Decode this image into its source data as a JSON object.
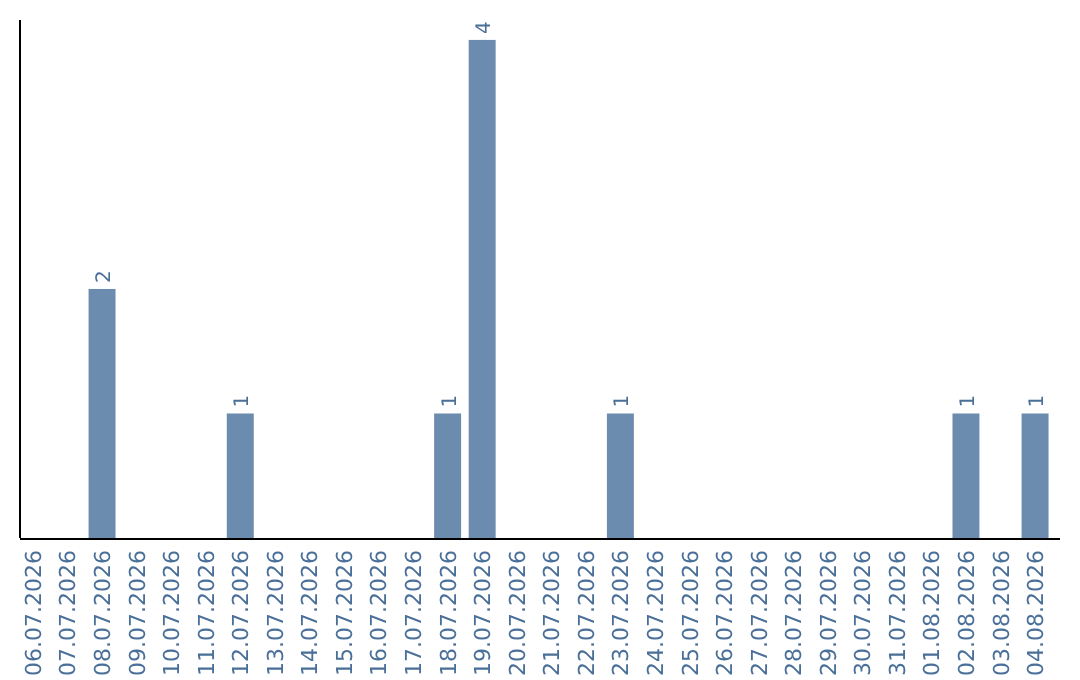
{
  "chart_data": {
    "type": "bar",
    "categories": [
      "06.07.2026",
      "07.07.2026",
      "08.07.2026",
      "09.07.2026",
      "10.07.2026",
      "11.07.2026",
      "12.07.2026",
      "13.07.2026",
      "14.07.2026",
      "15.07.2026",
      "16.07.2026",
      "17.07.2026",
      "18.07.2026",
      "19.07.2026",
      "20.07.2026",
      "21.07.2026",
      "22.07.2026",
      "23.07.2026",
      "24.07.2026",
      "25.07.2026",
      "26.07.2026",
      "27.07.2026",
      "28.07.2026",
      "29.07.2026",
      "30.07.2026",
      "31.07.2026",
      "01.08.2026",
      "02.08.2026",
      "03.08.2026",
      "04.08.2026"
    ],
    "values": [
      0,
      0,
      2,
      0,
      0,
      0,
      1,
      0,
      0,
      0,
      0,
      0,
      1,
      4,
      0,
      0,
      0,
      1,
      0,
      0,
      0,
      0,
      0,
      0,
      0,
      0,
      0,
      1,
      0,
      1
    ],
    "value_labels": [
      null,
      null,
      "2",
      null,
      null,
      null,
      "1",
      null,
      null,
      null,
      null,
      null,
      "1",
      "4",
      null,
      null,
      null,
      "1",
      null,
      null,
      null,
      null,
      null,
      null,
      null,
      null,
      null,
      "1",
      null,
      "1"
    ],
    "color": "#6b8cae"
  }
}
